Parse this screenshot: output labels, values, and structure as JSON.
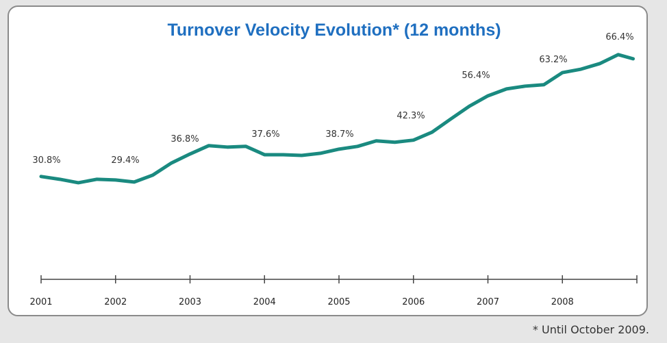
{
  "chart_data": {
    "type": "line",
    "title": "Turnover Velocity Evolution* (12 months)",
    "footnote": "* Until October 2009.",
    "x": [
      2001.0,
      2001.25,
      2001.5,
      2001.75,
      2002.0,
      2002.25,
      2002.5,
      2002.75,
      2003.0,
      2003.25,
      2003.5,
      2003.75,
      2004.0,
      2004.25,
      2004.5,
      2004.75,
      2005.0,
      2005.25,
      2005.5,
      2005.75,
      2006.0,
      2006.25,
      2006.5,
      2006.75,
      2007.0,
      2007.25,
      2007.5,
      2007.75,
      2008.0,
      2008.25,
      2008.5,
      2008.75,
      2008.95
    ],
    "series": [
      {
        "name": "Turnover velocity",
        "color": "#1a8a80",
        "values": [
          29.7,
          28.9,
          27.9,
          28.9,
          28.7,
          28.1,
          30.1,
          33.6,
          36.2,
          38.6,
          38.2,
          38.4,
          36.0,
          36.0,
          35.8,
          36.4,
          37.6,
          38.4,
          40.0,
          39.6,
          40.2,
          42.5,
          46.3,
          50.0,
          53.0,
          55.0,
          55.8,
          56.2,
          59.7,
          60.7,
          62.3,
          64.9,
          63.7
        ]
      }
    ],
    "annotations": [
      "30.8%",
      "29.4%",
      "36.8%",
      "37.6%",
      "38.7%",
      "42.3%",
      "56.4%",
      "63.2%",
      "66.4%"
    ],
    "xlim": [
      2001,
      2009
    ],
    "xticks": [
      2001,
      2002,
      2003,
      2004,
      2005,
      2006,
      2007,
      2008
    ],
    "ylim": [
      0,
      70
    ]
  }
}
